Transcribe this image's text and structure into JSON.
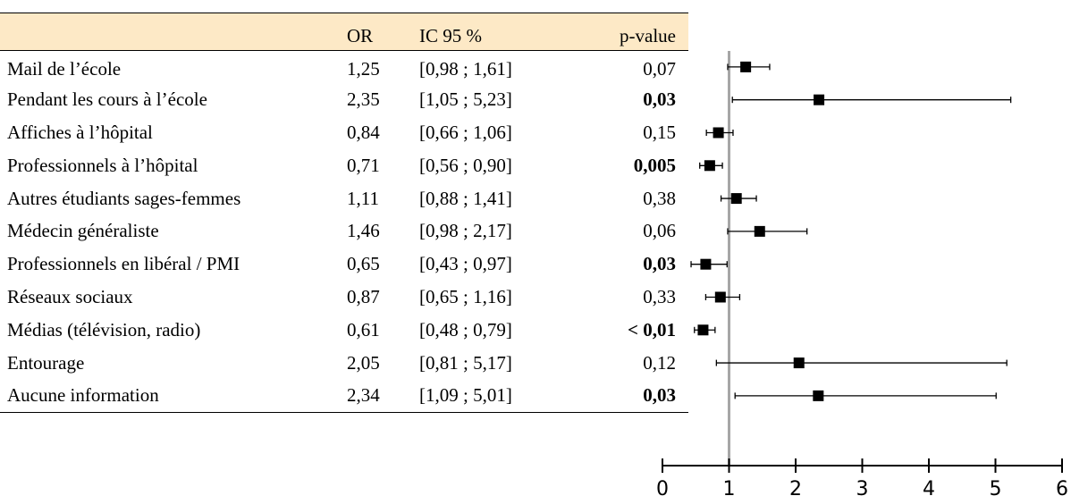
{
  "table": {
    "headers": [
      "",
      "OR",
      "IC 95 %",
      "p-value"
    ],
    "rows": [
      {
        "label": "Mail de l’école",
        "or": "1,25",
        "ci": "[0,98 ; 1,61]",
        "p": "0,07",
        "significant": false
      },
      {
        "label": "Pendant les cours à l’école",
        "or": "2,35",
        "ci": "[1,05 ; 5,23]",
        "p": "0,03",
        "significant": true
      },
      {
        "label": "Affiches à l’hôpital",
        "or": "0,84",
        "ci": "[0,66 ; 1,06]",
        "p": "0,15",
        "significant": false
      },
      {
        "label": "Professionnels à l’hôpital",
        "or": "0,71",
        "ci": "[0,56 ; 0,90]",
        "p": "0,005",
        "significant": true
      },
      {
        "label": "Autres étudiants sages-femmes",
        "or": "1,11",
        "ci": "[0,88 ; 1,41]",
        "p": "0,38",
        "significant": false
      },
      {
        "label": "Médecin généraliste",
        "or": "1,46",
        "ci": "[0,98 ; 2,17]",
        "p": "0,06",
        "significant": false
      },
      {
        "label": "Professionnels en libéral / PMI",
        "or": "0,65",
        "ci": "[0,43 ; 0,97]",
        "p": "0,03",
        "significant": true
      },
      {
        "label": "Réseaux sociaux",
        "or": "0,87",
        "ci": "[0,65 ; 1,16]",
        "p": "0,33",
        "significant": false
      },
      {
        "label": "Médias (télévision, radio)",
        "or": "0,61",
        "ci": "[0,48 ; 0,79]",
        "p": "< 0,01",
        "significant": true
      },
      {
        "label": "Entourage",
        "or": "2,05",
        "ci": "[0,81 ; 5,17]",
        "p": "0,12",
        "significant": false
      },
      {
        "label": "Aucune information",
        "or": "2,34",
        "ci": "[1,09 ; 5,01]",
        "p": "0,03",
        "significant": true
      }
    ]
  },
  "chart_data": {
    "type": "scatter",
    "categories": [
      "Mail de l’école",
      "Pendant les cours à l’école",
      "Affiches à l’hôpital",
      "Professionnels à l’hôpital",
      "Autres étudiants sages-femmes",
      "Médecin généraliste",
      "Professionnels en libéral / PMI",
      "Réseaux sociaux",
      "Médias (télévision, radio)",
      "Entourage",
      "Aucune information"
    ],
    "or": [
      1.25,
      2.35,
      0.84,
      0.71,
      1.11,
      1.46,
      0.65,
      0.87,
      0.61,
      2.05,
      2.34
    ],
    "ci_low": [
      0.98,
      1.05,
      0.66,
      0.56,
      0.88,
      0.98,
      0.43,
      0.65,
      0.48,
      0.81,
      1.09
    ],
    "ci_high": [
      1.61,
      5.23,
      1.06,
      0.9,
      1.41,
      2.17,
      0.97,
      1.16,
      0.79,
      5.17,
      5.01
    ],
    "reference_line": 1,
    "xlim": [
      0,
      6
    ],
    "xticks": [
      0,
      1,
      2,
      3,
      4,
      5,
      6
    ],
    "title": "",
    "xlabel": "",
    "ylabel": "",
    "colors": {
      "marker": "#000000",
      "reference_line": "#a6a6a6",
      "header_bg": "#fde9c6"
    }
  }
}
